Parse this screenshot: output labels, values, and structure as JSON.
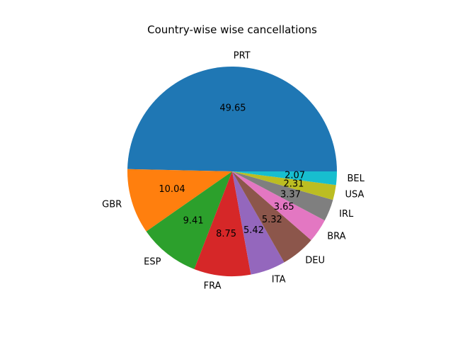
{
  "chart_data": {
    "type": "pie",
    "title": "Country-wise wise cancellations",
    "categories": [
      "PRT",
      "GBR",
      "ESP",
      "FRA",
      "ITA",
      "DEU",
      "BRA",
      "IRL",
      "USA",
      "BEL"
    ],
    "values": [
      49.65,
      10.04,
      9.41,
      8.75,
      5.42,
      5.32,
      3.65,
      3.37,
      2.31,
      2.07
    ],
    "value_labels": [
      "49.65",
      "10.04",
      "9.41",
      "8.75",
      "5.42",
      "5.32",
      "3.65",
      "3.37",
      "2.31",
      "2.07"
    ],
    "colors": [
      "#1f77b4",
      "#ff7f0e",
      "#2ca02c",
      "#d62728",
      "#9467bd",
      "#8c564b",
      "#e377c2",
      "#7f7f7f",
      "#bcbd22",
      "#17becf"
    ],
    "start_angle_deg": 0,
    "direction": "counterclockwise",
    "legend": "none"
  }
}
